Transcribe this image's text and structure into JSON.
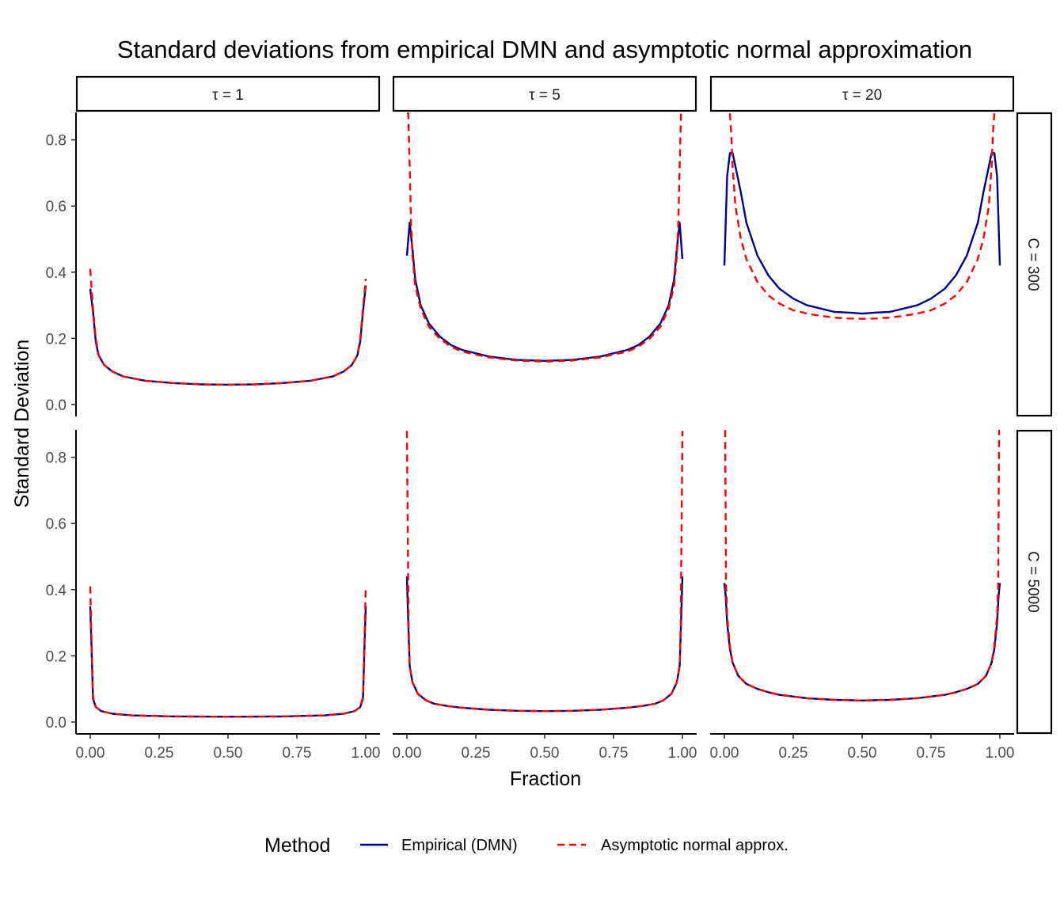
{
  "chart_data": {
    "type": "line",
    "title": "Standard deviations from empirical DMN and asymptotic normal approximation",
    "xlabel": "Fraction",
    "ylabel": "Standard Deviation",
    "xlim": [
      0,
      1
    ],
    "ylim": [
      0,
      0.88
    ],
    "x_ticks": [
      "0.00",
      "0.25",
      "0.50",
      "0.75",
      "1.00"
    ],
    "y_ticks": [
      "0.0",
      "0.2",
      "0.4",
      "0.6",
      "0.8"
    ],
    "col_facets": [
      "τ = 1",
      "τ = 5",
      "τ = 20"
    ],
    "row_facets": [
      "C = 300",
      "C = 5000"
    ],
    "legend": {
      "title": "Method",
      "position": "bottom",
      "entries": [
        {
          "label": "Empirical (DMN)",
          "color": "#00008B",
          "linetype": "solid"
        },
        {
          "label": "Asymptotic normal approx.",
          "color": "#FF0000",
          "linetype": "dashed"
        }
      ]
    },
    "grid": false,
    "panels": [
      {
        "row": 0,
        "col": 0,
        "series": [
          {
            "name": "Empirical (DMN)",
            "x": [
              0,
              0.01,
              0.02,
              0.03,
              0.05,
              0.08,
              0.12,
              0.2,
              0.3,
              0.4,
              0.5,
              0.6,
              0.7,
              0.8,
              0.88,
              0.92,
              0.95,
              0.97,
              0.98,
              0.99,
              1
            ],
            "y": [
              0.35,
              0.28,
              0.19,
              0.15,
              0.12,
              0.1,
              0.085,
              0.072,
              0.065,
              0.061,
              0.06,
              0.061,
              0.065,
              0.072,
              0.085,
              0.1,
              0.12,
              0.15,
              0.19,
              0.28,
              0.36
            ]
          },
          {
            "name": "Asymptotic normal approx.",
            "x": [
              0,
              0.01,
              0.02,
              0.03,
              0.05,
              0.08,
              0.12,
              0.2,
              0.3,
              0.4,
              0.5,
              0.6,
              0.7,
              0.8,
              0.88,
              0.92,
              0.95,
              0.97,
              0.98,
              0.99,
              1
            ],
            "y": [
              0.41,
              0.29,
              0.2,
              0.15,
              0.12,
              0.1,
              0.085,
              0.072,
              0.065,
              0.061,
              0.06,
              0.061,
              0.065,
              0.072,
              0.085,
              0.1,
              0.12,
              0.15,
              0.2,
              0.29,
              0.38
            ]
          }
        ]
      },
      {
        "row": 0,
        "col": 1,
        "series": [
          {
            "name": "Empirical (DMN)",
            "x": [
              0,
              0.01,
              0.02,
              0.03,
              0.05,
              0.08,
              0.12,
              0.16,
              0.2,
              0.3,
              0.4,
              0.5,
              0.6,
              0.7,
              0.8,
              0.84,
              0.88,
              0.92,
              0.95,
              0.97,
              0.98,
              0.99,
              1
            ],
            "y": [
              0.45,
              0.55,
              0.47,
              0.38,
              0.3,
              0.245,
              0.205,
              0.18,
              0.165,
              0.145,
              0.135,
              0.132,
              0.135,
              0.145,
              0.165,
              0.18,
              0.205,
              0.245,
              0.3,
              0.38,
              0.47,
              0.55,
              0.44
            ]
          },
          {
            "name": "Asymptotic normal approx.",
            "x": [
              0,
              0.005,
              0.01,
              0.015,
              0.02,
              0.03,
              0.05,
              0.08,
              0.12,
              0.16,
              0.2,
              0.3,
              0.4,
              0.5,
              0.6,
              0.7,
              0.8,
              0.84,
              0.88,
              0.92,
              0.95,
              0.97,
              0.98,
              0.985,
              0.99,
              0.995,
              1
            ],
            "y": [
              0.88,
              0.88,
              0.72,
              0.55,
              0.45,
              0.36,
              0.29,
              0.235,
              0.198,
              0.175,
              0.16,
              0.142,
              0.133,
              0.13,
              0.133,
              0.142,
              0.16,
              0.175,
              0.198,
              0.235,
              0.29,
              0.36,
              0.45,
              0.55,
              0.72,
              0.88,
              0.88
            ]
          }
        ]
      },
      {
        "row": 0,
        "col": 2,
        "series": [
          {
            "name": "Empirical (DMN)",
            "x": [
              0,
              0.01,
              0.02,
              0.03,
              0.04,
              0.06,
              0.08,
              0.12,
              0.16,
              0.2,
              0.25,
              0.3,
              0.35,
              0.4,
              0.45,
              0.5,
              0.55,
              0.6,
              0.65,
              0.7,
              0.75,
              0.8,
              0.84,
              0.88,
              0.92,
              0.94,
              0.96,
              0.97,
              0.98,
              0.99,
              1
            ],
            "y": [
              0.42,
              0.69,
              0.76,
              0.76,
              0.72,
              0.64,
              0.55,
              0.45,
              0.39,
              0.35,
              0.32,
              0.3,
              0.29,
              0.28,
              0.278,
              0.275,
              0.278,
              0.28,
              0.29,
              0.3,
              0.32,
              0.35,
              0.39,
              0.45,
              0.55,
              0.64,
              0.72,
              0.76,
              0.76,
              0.69,
              0.42
            ]
          },
          {
            "name": "Asymptotic normal approx.",
            "x": [
              0.02,
              0.025,
              0.03,
              0.04,
              0.06,
              0.08,
              0.12,
              0.16,
              0.2,
              0.25,
              0.3,
              0.35,
              0.4,
              0.45,
              0.5,
              0.55,
              0.6,
              0.65,
              0.7,
              0.75,
              0.8,
              0.84,
              0.88,
              0.92,
              0.94,
              0.96,
              0.97,
              0.975,
              0.98
            ],
            "y": [
              0.88,
              0.82,
              0.72,
              0.6,
              0.5,
              0.44,
              0.37,
              0.33,
              0.305,
              0.285,
              0.275,
              0.268,
              0.263,
              0.26,
              0.259,
              0.26,
              0.263,
              0.268,
              0.275,
              0.285,
              0.305,
              0.33,
              0.37,
              0.44,
              0.5,
              0.6,
              0.72,
              0.82,
              0.88
            ]
          }
        ]
      },
      {
        "row": 1,
        "col": 0,
        "series": [
          {
            "name": "Empirical (DMN)",
            "x": [
              0,
              0.005,
              0.01,
              0.02,
              0.04,
              0.08,
              0.15,
              0.3,
              0.5,
              0.7,
              0.85,
              0.92,
              0.96,
              0.98,
              0.99,
              0.995,
              1
            ],
            "y": [
              0.35,
              0.22,
              0.07,
              0.045,
              0.033,
              0.025,
              0.02,
              0.017,
              0.016,
              0.017,
              0.02,
              0.025,
              0.033,
              0.045,
              0.07,
              0.22,
              0.35
            ]
          },
          {
            "name": "Asymptotic normal approx.",
            "x": [
              0,
              0.005,
              0.01,
              0.02,
              0.04,
              0.08,
              0.15,
              0.3,
              0.5,
              0.7,
              0.85,
              0.92,
              0.96,
              0.98,
              0.99,
              0.995,
              1
            ],
            "y": [
              0.41,
              0.24,
              0.075,
              0.046,
              0.033,
              0.025,
              0.02,
              0.017,
              0.016,
              0.017,
              0.02,
              0.025,
              0.033,
              0.046,
              0.075,
              0.24,
              0.41
            ]
          }
        ]
      },
      {
        "row": 1,
        "col": 1,
        "series": [
          {
            "name": "Empirical (DMN)",
            "x": [
              0,
              0.005,
              0.01,
              0.02,
              0.04,
              0.07,
              0.1,
              0.15,
              0.2,
              0.3,
              0.4,
              0.5,
              0.6,
              0.7,
              0.8,
              0.85,
              0.9,
              0.93,
              0.96,
              0.98,
              0.99,
              0.995,
              1
            ],
            "y": [
              0.44,
              0.3,
              0.17,
              0.12,
              0.085,
              0.065,
              0.055,
              0.048,
              0.043,
              0.037,
              0.034,
              0.033,
              0.034,
              0.037,
              0.043,
              0.048,
              0.055,
              0.065,
              0.085,
              0.12,
              0.17,
              0.3,
              0.44
            ]
          },
          {
            "name": "Asymptotic normal approx.",
            "x": [
              0,
              0.003,
              0.006,
              0.01,
              0.02,
              0.04,
              0.07,
              0.1,
              0.15,
              0.2,
              0.3,
              0.4,
              0.5,
              0.6,
              0.7,
              0.8,
              0.85,
              0.9,
              0.93,
              0.96,
              0.98,
              0.99,
              0.994,
              0.997,
              1
            ],
            "y": [
              0.88,
              0.6,
              0.3,
              0.17,
              0.12,
              0.085,
              0.065,
              0.055,
              0.048,
              0.043,
              0.037,
              0.034,
              0.033,
              0.034,
              0.037,
              0.043,
              0.048,
              0.055,
              0.065,
              0.085,
              0.12,
              0.17,
              0.3,
              0.6,
              0.88
            ]
          }
        ]
      },
      {
        "row": 1,
        "col": 2,
        "series": [
          {
            "name": "Empirical (DMN)",
            "x": [
              0,
              0.005,
              0.01,
              0.02,
              0.03,
              0.05,
              0.08,
              0.12,
              0.16,
              0.2,
              0.3,
              0.4,
              0.5,
              0.6,
              0.7,
              0.8,
              0.84,
              0.88,
              0.92,
              0.95,
              0.97,
              0.98,
              0.99,
              0.995,
              1
            ],
            "y": [
              0.42,
              0.38,
              0.3,
              0.22,
              0.18,
              0.14,
              0.115,
              0.1,
              0.09,
              0.082,
              0.072,
              0.067,
              0.065,
              0.067,
              0.072,
              0.082,
              0.09,
              0.1,
              0.115,
              0.14,
              0.18,
              0.22,
              0.3,
              0.38,
              0.42
            ]
          },
          {
            "name": "Asymptotic normal approx.",
            "x": [
              0,
              0.003,
              0.006,
              0.01,
              0.02,
              0.03,
              0.05,
              0.08,
              0.12,
              0.16,
              0.2,
              0.3,
              0.4,
              0.5,
              0.6,
              0.7,
              0.8,
              0.84,
              0.88,
              0.92,
              0.95,
              0.97,
              0.98,
              0.99,
              0.994,
              0.997,
              1
            ],
            "y": [
              0.88,
              0.88,
              0.42,
              0.32,
              0.23,
              0.18,
              0.14,
              0.115,
              0.1,
              0.09,
              0.082,
              0.072,
              0.067,
              0.065,
              0.067,
              0.072,
              0.082,
              0.09,
              0.1,
              0.115,
              0.14,
              0.18,
              0.23,
              0.32,
              0.42,
              0.88,
              0.88
            ]
          }
        ]
      }
    ]
  }
}
